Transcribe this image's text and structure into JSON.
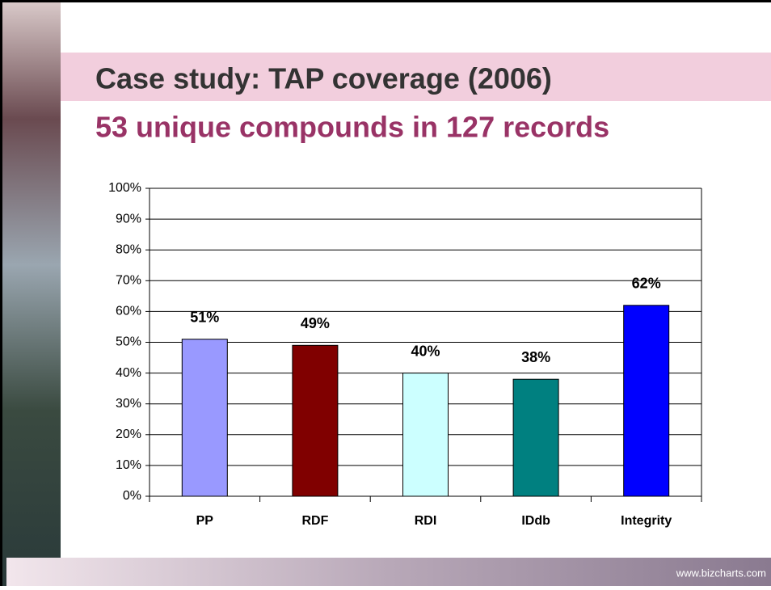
{
  "chart_data": {
    "type": "bar",
    "title": "Case study: TAP coverage (2006)",
    "subtitle": "53 unique compounds in 127 records",
    "footer": "www.bizcharts.com",
    "categories": [
      "PP",
      "RDF",
      "RDI",
      "IDdb",
      "Integrity"
    ],
    "values": [
      51,
      49,
      40,
      38,
      62
    ],
    "value_labels": [
      "51%",
      "49%",
      "40%",
      "38%",
      "62%"
    ],
    "colors": [
      "#9999ff",
      "#800000",
      "#ccffff",
      "#008080",
      "#0000ff"
    ],
    "ylim": [
      0,
      100
    ],
    "yticks": [
      {
        "value": 0,
        "label": "0%"
      },
      {
        "value": 10,
        "label": "10%"
      },
      {
        "value": 20,
        "label": "20%"
      },
      {
        "value": 30,
        "label": "30%"
      },
      {
        "value": 40,
        "label": "40%"
      },
      {
        "value": 50,
        "label": "50%"
      },
      {
        "value": 60,
        "label": "60%"
      },
      {
        "value": 70,
        "label": "70%"
      },
      {
        "value": 80,
        "label": "80%"
      },
      {
        "value": 90,
        "label": "90%"
      },
      {
        "value": 100,
        "label": "100%"
      }
    ],
    "grid": true
  }
}
